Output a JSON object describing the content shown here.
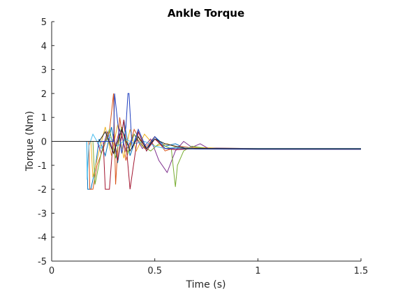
{
  "chart_data": {
    "type": "line",
    "title": "Ankle Torque",
    "xlabel": "Time (s)",
    "ylabel": "Torque (Nm)",
    "xlim": [
      0,
      1.5
    ],
    "ylim": [
      -5,
      5
    ],
    "xticks": [
      0,
      0.5,
      1,
      1.5
    ],
    "xtick_labels": [
      "0",
      "0.5",
      "1",
      "1.5"
    ],
    "yticks": [
      -5,
      -4,
      -3,
      -2,
      -1,
      0,
      1,
      2,
      3,
      4,
      5
    ],
    "ytick_labels": [
      "-5",
      "-4",
      "-3",
      "-2",
      "-1",
      "0",
      "1",
      "2",
      "3",
      "4",
      "5"
    ],
    "grid": false,
    "legend": false,
    "series_colors": [
      "#0072BD",
      "#D95319",
      "#EDB120",
      "#7E2F8E",
      "#77AC30",
      "#4DBEEE",
      "#A2142F",
      "#1f3fbf",
      "#222222"
    ],
    "series": [
      {
        "x": [
          0,
          0.17,
          0.175,
          0.19,
          0.21,
          0.23,
          0.26,
          0.29,
          0.32,
          0.35,
          0.38,
          0.42,
          0.46,
          0.5,
          0.55,
          0.6,
          0.65,
          0.7,
          0.8,
          1.0,
          1.5
        ],
        "y": [
          0,
          0,
          -2,
          -2,
          -1.2,
          0.1,
          -0.6,
          0.6,
          -0.9,
          0.9,
          -0.6,
          0.4,
          -0.4,
          0.2,
          -0.2,
          -0.1,
          -0.3,
          -0.25,
          -0.3,
          -0.3,
          -0.3
        ]
      },
      {
        "x": [
          0,
          0.18,
          0.185,
          0.2,
          0.22,
          0.25,
          0.28,
          0.3,
          0.31,
          0.33,
          0.36,
          0.4,
          0.45,
          0.5,
          0.55,
          0.62,
          0.7,
          0.8,
          1.0,
          1.5
        ],
        "y": [
          0,
          0,
          -2,
          -2,
          -1.0,
          -0.3,
          0.4,
          2,
          -1.8,
          1.0,
          -0.8,
          0.5,
          -0.3,
          0.2,
          -0.4,
          -0.2,
          -0.3,
          -0.3,
          -0.33,
          -0.33
        ]
      },
      {
        "x": [
          0,
          0.19,
          0.2,
          0.23,
          0.26,
          0.29,
          0.32,
          0.35,
          0.38,
          0.41,
          0.45,
          0.5,
          0.56,
          0.62,
          0.7,
          0.8,
          1.0,
          1.5
        ],
        "y": [
          0,
          0,
          -1.5,
          -0.4,
          0.6,
          -0.6,
          0.7,
          -0.7,
          0.5,
          -0.4,
          0.3,
          -0.2,
          -0.1,
          -0.3,
          -0.25,
          -0.28,
          -0.3,
          -0.3
        ]
      },
      {
        "x": [
          0,
          0.22,
          0.24,
          0.27,
          0.3,
          0.33,
          0.36,
          0.4,
          0.44,
          0.48,
          0.52,
          0.56,
          0.6,
          0.64,
          0.68,
          0.72,
          0.76,
          0.8,
          1.0,
          1.5
        ],
        "y": [
          0,
          0,
          -0.5,
          0.4,
          -0.5,
          0.5,
          -0.4,
          0.3,
          -0.3,
          0.1,
          -0.8,
          -1.3,
          -0.4,
          0.0,
          -0.25,
          -0.1,
          -0.3,
          -0.28,
          -0.3,
          -0.3
        ]
      },
      {
        "x": [
          0,
          0.2,
          0.21,
          0.24,
          0.28,
          0.31,
          0.34,
          0.37,
          0.4,
          0.44,
          0.48,
          0.52,
          0.58,
          0.6,
          0.61,
          0.64,
          0.68,
          0.75,
          1.0,
          1.5
        ],
        "y": [
          0,
          0,
          -1.8,
          -0.5,
          0.5,
          -0.7,
          0.6,
          -0.5,
          0.3,
          -0.2,
          -0.4,
          -0.1,
          -0.3,
          -1.9,
          -1.0,
          -0.4,
          -0.2,
          -0.3,
          -0.32,
          -0.32
        ]
      },
      {
        "x": [
          0,
          0.17,
          0.172,
          0.18,
          0.2,
          0.24,
          0.28,
          0.32,
          0.36,
          0.4,
          0.45,
          0.5,
          0.55,
          0.6,
          0.7,
          0.8,
          1.0,
          1.5
        ],
        "y": [
          0,
          0,
          -1.6,
          -0.2,
          0.3,
          -0.3,
          0.2,
          -0.2,
          0.1,
          -0.1,
          0.0,
          -0.2,
          -0.3,
          -0.25,
          -0.3,
          -0.3,
          -0.3,
          -0.3
        ]
      },
      {
        "x": [
          0,
          0.25,
          0.26,
          0.28,
          0.3,
          0.32,
          0.35,
          0.37,
          0.38,
          0.42,
          0.46,
          0.5,
          0.55,
          0.6,
          0.7,
          1.0,
          1.5
        ],
        "y": [
          0,
          0,
          -2,
          -2,
          0.3,
          -0.8,
          0.9,
          -1.0,
          -2,
          0.4,
          -0.4,
          0.1,
          -0.3,
          -0.35,
          -0.3,
          -0.32,
          -0.32
        ]
      },
      {
        "x": [
          0,
          0.3,
          0.305,
          0.32,
          0.34,
          0.36,
          0.37,
          0.375,
          0.39,
          0.42,
          0.46,
          0.5,
          0.55,
          0.6,
          0.7,
          1.0,
          1.5
        ],
        "y": [
          0,
          0,
          2,
          0.8,
          -0.5,
          0.6,
          2,
          2,
          -0.3,
          0.5,
          -0.3,
          0.2,
          -0.3,
          -0.3,
          -0.32,
          -0.33,
          -0.33
        ]
      },
      {
        "x": [
          0,
          0.23,
          0.26,
          0.3,
          0.34,
          0.38,
          0.42,
          0.46,
          0.5,
          0.55,
          0.6,
          0.65,
          0.7,
          0.8,
          1.0,
          1.5
        ],
        "y": [
          0,
          0,
          0.4,
          -0.5,
          0.5,
          -0.4,
          0.2,
          -0.3,
          0.1,
          -0.1,
          -0.2,
          -0.3,
          -0.3,
          -0.3,
          -0.31,
          -0.31
        ]
      }
    ]
  }
}
